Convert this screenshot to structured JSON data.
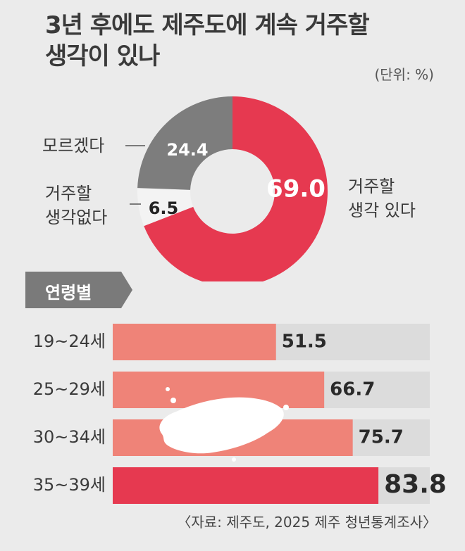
{
  "header": {
    "title_line1": "3년 후에도 제주도에 계속 거주할",
    "title_line2": "생각이 있나",
    "unit": "(단위: %)"
  },
  "chart_data": [
    {
      "type": "pie",
      "title": "3년 후에도 제주도에 계속 거주할 생각이 있나",
      "unit": "%",
      "labels": [
        "거주할 생각 있다",
        "거주할 생각없다",
        "모르겠다"
      ],
      "values": [
        69.0,
        6.5,
        24.4
      ],
      "value_labels": [
        "69.0",
        "6.5",
        "24.4"
      ],
      "colors": [
        "#e63950",
        "#f3f3f3",
        "#7d7d7d"
      ],
      "label_lines": [
        [
          "거주할",
          "생각 있다"
        ],
        [
          "거주할",
          "생각없다"
        ],
        [
          "모르겠다"
        ]
      ]
    },
    {
      "type": "bar",
      "title": "연령별",
      "orientation": "horizontal",
      "categories": [
        "19~24세",
        "25~29세",
        "30~34세",
        "35~39세"
      ],
      "values": [
        51.5,
        66.7,
        75.7,
        83.8
      ],
      "value_labels": [
        "51.5",
        "66.7",
        "75.7",
        "83.8"
      ],
      "xlim": [
        0,
        100
      ],
      "colors": [
        "#ef8378",
        "#ef8378",
        "#ef8378",
        "#e63950"
      ],
      "track_color": "#dcdcdc"
    }
  ],
  "footer": {
    "source": "〈자료: 제주도, 2025 제주 청년통계조사〉"
  }
}
